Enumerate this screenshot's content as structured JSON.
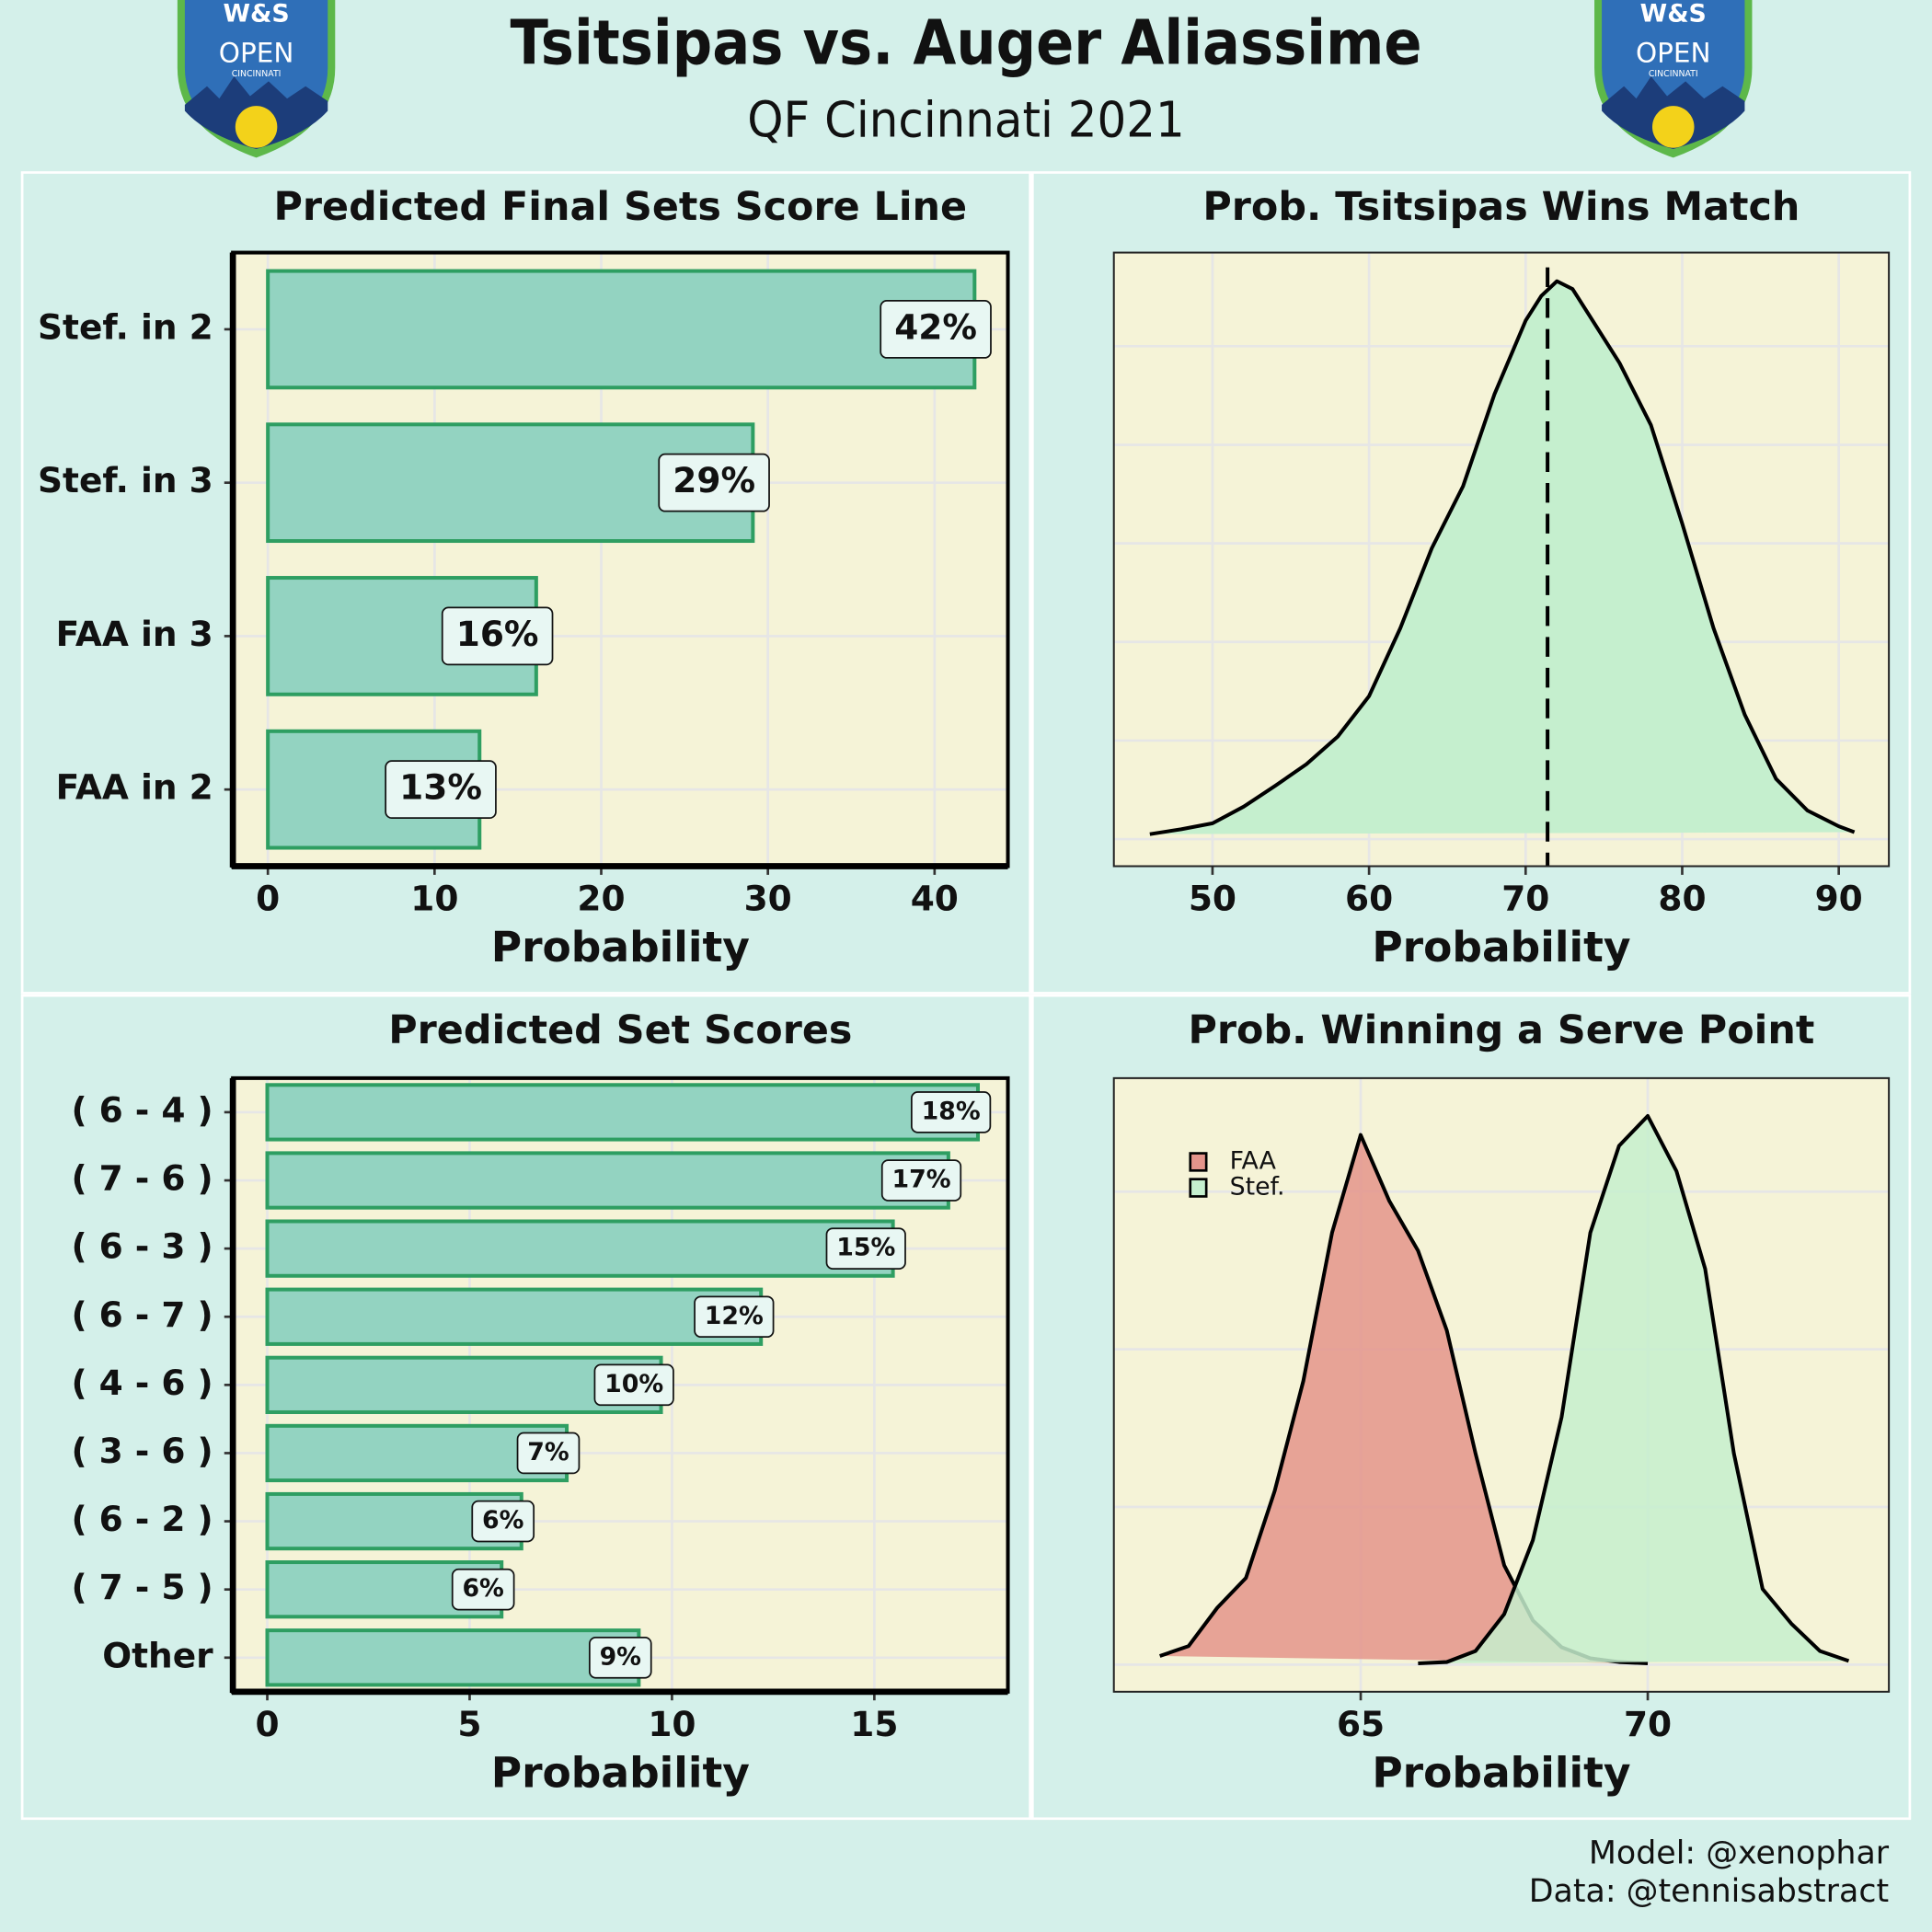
{
  "title": "Tsitsipas vs. Auger Aliassime",
  "subtitle": "QF Cincinnati 2021",
  "logo": {
    "monogram": "W&S",
    "name": "OPEN",
    "city": "CINCINNATI"
  },
  "credits": [
    "Model: @xenophar",
    "Data: @tennisabstract"
  ],
  "chart_data": [
    {
      "type": "bar",
      "orientation": "horizontal",
      "title": "Predicted Final Sets Score Line",
      "xlabel": "Probability",
      "categories": [
        "Stef. in 2",
        "Stef. in 3",
        "FAA in 3",
        "FAA in 2"
      ],
      "values": [
        42.4,
        29.1,
        16.1,
        12.7
      ],
      "value_labels": [
        "42%",
        "29%",
        "16%",
        "13%"
      ],
      "color": "#93d3c1",
      "edgecolor": "#2e9e62",
      "xlim": [
        -2.1,
        44.4
      ],
      "xticks": [
        0,
        10,
        20,
        30,
        40
      ],
      "grid": true
    },
    {
      "type": "density",
      "title": "Prob. Tsitsipas Wins Match",
      "xlabel": "Probability",
      "x": [
        46,
        48,
        50,
        52,
        54,
        56,
        58,
        60,
        62,
        64,
        66,
        68,
        70,
        71,
        72,
        73,
        74,
        76,
        78,
        80,
        82,
        84,
        86,
        88,
        90,
        91
      ],
      "values": [
        0.0005,
        0.001,
        0.0016,
        0.0033,
        0.0054,
        0.0076,
        0.0104,
        0.0145,
        0.0214,
        0.0295,
        0.0358,
        0.0451,
        0.0526,
        0.0551,
        0.0566,
        0.0558,
        0.0533,
        0.0483,
        0.042,
        0.032,
        0.0214,
        0.0126,
        0.0061,
        0.0029,
        0.0013,
        0.0007
      ],
      "color": "#c5efce",
      "vline": 71.4,
      "xlim": [
        43.7,
        93.2
      ],
      "xticks": [
        50,
        60,
        70,
        80,
        90
      ],
      "ylim": [
        -0.00275,
        0.0595
      ],
      "yticks": [
        0,
        0.01,
        0.02,
        0.03,
        0.04,
        0.05
      ],
      "y_tick_labels": false,
      "grid": true
    },
    {
      "type": "bar",
      "orientation": "horizontal",
      "title": "Predicted Set Scores",
      "xlabel": "Probability",
      "categories": [
        "( 6 - 4 )",
        "( 7 - 6 )",
        "( 6 - 3 )",
        "( 6 - 7 )",
        "( 4 - 6 )",
        "( 3 - 6 )",
        "( 6 - 2 )",
        "( 7 - 5 )",
        "Other"
      ],
      "values": [
        17.56,
        16.83,
        15.46,
        12.2,
        9.73,
        7.4,
        6.28,
        5.79,
        9.18
      ],
      "value_labels": [
        "18%",
        "17%",
        "15%",
        "12%",
        "10%",
        "7%",
        "6%",
        "6%",
        "9%"
      ],
      "color": "#93d3c1",
      "edgecolor": "#2e9e62",
      "xlim": [
        -0.85,
        18.3
      ],
      "xticks": [
        0,
        5,
        10,
        15
      ],
      "grid": true
    },
    {
      "type": "density",
      "title": "Prob. Winning a Serve Point",
      "xlabel": "Probability",
      "series": [
        {
          "name": "FAA",
          "color": "#e4948b",
          "x": [
            61.5,
            62,
            62.5,
            63,
            63.5,
            64,
            64.5,
            65,
            65.5,
            66,
            66.5,
            67,
            67.5,
            68,
            68.5,
            69,
            69.5,
            70
          ],
          "values": [
            0.0055,
            0.0117,
            0.036,
            0.055,
            0.11,
            0.18,
            0.274,
            0.336,
            0.294,
            0.2625,
            0.212,
            0.134,
            0.063,
            0.028,
            0.011,
            0.004,
            0.0016,
            0.0008
          ]
        },
        {
          "name": "Stef.",
          "color": "#c5efce",
          "x": [
            66,
            66.5,
            67,
            67.5,
            68,
            68.5,
            69,
            69.5,
            70,
            70.5,
            71,
            71.5,
            72,
            72.5,
            73,
            73.5
          ],
          "values": [
            0.0008,
            0.0016,
            0.0086,
            0.032,
            0.079,
            0.157,
            0.274,
            0.329,
            0.348,
            0.313,
            0.251,
            0.134,
            0.048,
            0.026,
            0.0086,
            0.0023
          ]
        }
      ],
      "legend_position": "top-left",
      "xlim": [
        60.7,
        74.2
      ],
      "xticks": [
        65,
        70
      ],
      "ylim": [
        -0.0172,
        0.372
      ],
      "yticks": [
        0,
        0.1,
        0.2,
        0.3
      ],
      "y_tick_labels": false,
      "grid": true
    }
  ]
}
